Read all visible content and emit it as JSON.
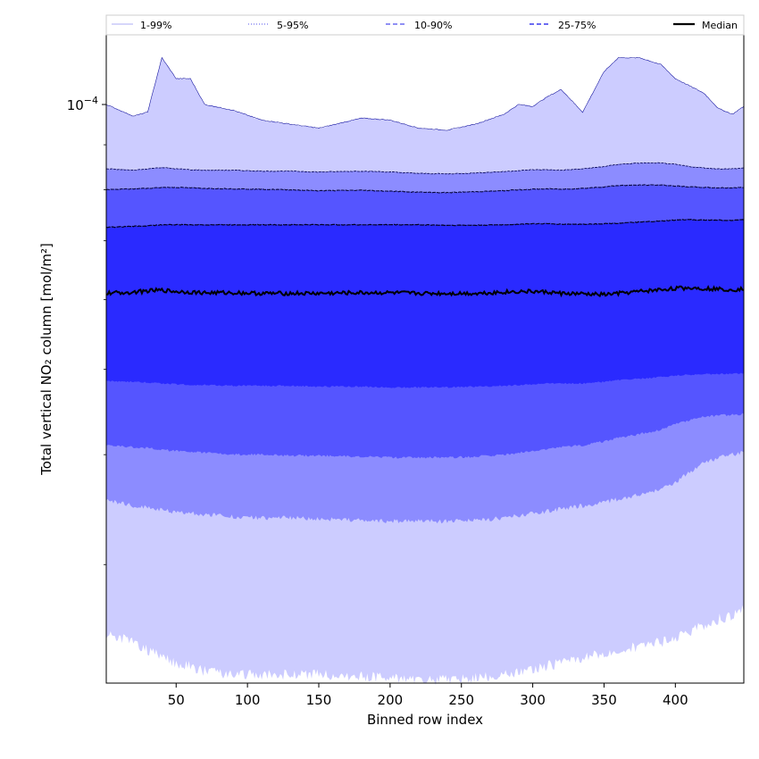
{
  "chart_data": {
    "type": "area",
    "title": "",
    "xlabel": "Binned row index",
    "ylabel": "Total vertical NO₂ column [mol/m²]",
    "yscale": "log",
    "xlim": [
      1,
      448
    ],
    "ylim": [
      2.2e-05,
      0.00012
    ],
    "x_ticks": [
      50,
      100,
      150,
      200,
      250,
      300,
      350,
      400
    ],
    "x_tick_labels": [
      "50",
      "100",
      "150",
      "200",
      "250",
      "300",
      "350",
      "400"
    ],
    "y_major_tick": 0.0001,
    "y_major_tick_label_base": "10",
    "y_major_tick_label_exp": "−4",
    "y_minor_ticks": [
      3e-05,
      4e-05,
      5e-05,
      6e-05,
      7e-05,
      8e-05,
      9e-05
    ],
    "legend": {
      "location": "top, above axes, single row",
      "entries": [
        {
          "label": "1-99%",
          "color": "#c8c8f8",
          "style": "solid"
        },
        {
          "label": "5-95%",
          "color": "#8c8cf2",
          "style": "dotted"
        },
        {
          "label": "10-90%",
          "color": "#6a6af0",
          "style": "dashed"
        },
        {
          "label": "25-75%",
          "color": "#3a3aee",
          "style": "dashed"
        },
        {
          "label": "Median",
          "color": "#000000",
          "style": "solid"
        }
      ]
    },
    "x": [
      1,
      20,
      30,
      40,
      50,
      60,
      70,
      90,
      110,
      130,
      150,
      180,
      200,
      220,
      240,
      260,
      280,
      290,
      300,
      310,
      320,
      335,
      350,
      360,
      375,
      390,
      400,
      410,
      420,
      430,
      440,
      448
    ],
    "bands": [
      {
        "name": "1-99%",
        "color": "#ccccff",
        "lower": [
          2.5e-05,
          2.45e-05,
          2.4e-05,
          2.35e-05,
          2.32e-05,
          2.3e-05,
          2.27e-05,
          2.25e-05,
          2.25e-05,
          2.25e-05,
          2.25e-05,
          2.24e-05,
          2.23e-05,
          2.22e-05,
          2.22e-05,
          2.23e-05,
          2.25e-05,
          2.27e-05,
          2.28e-05,
          2.3e-05,
          2.32e-05,
          2.35e-05,
          2.38e-05,
          2.4e-05,
          2.42e-05,
          2.45e-05,
          2.47e-05,
          2.52e-05,
          2.56e-05,
          2.6e-05,
          2.63e-05,
          2.67e-05
        ],
        "upper": [
          0.0001,
          9.7e-05,
          9.8e-05,
          0.000113,
          0.000107,
          0.000107,
          0.0001,
          9.85e-05,
          9.6e-05,
          9.5e-05,
          9.4e-05,
          9.65e-05,
          9.6e-05,
          9.4e-05,
          9.35e-05,
          9.5e-05,
          9.75e-05,
          0.0001,
          9.95e-05,
          0.000102,
          0.000104,
          9.8e-05,
          0.000109,
          0.000113,
          0.000113,
          0.000111,
          0.000107,
          0.000105,
          0.000103,
          9.9e-05,
          9.75e-05,
          9.95e-05
        ]
      },
      {
        "name": "5-95%",
        "color": "#8c8cff",
        "lower": [
          3.55e-05,
          3.5e-05,
          3.48e-05,
          3.46e-05,
          3.44e-05,
          3.43e-05,
          3.42e-05,
          3.4e-05,
          3.39e-05,
          3.39e-05,
          3.38e-05,
          3.37e-05,
          3.36e-05,
          3.36e-05,
          3.36e-05,
          3.37e-05,
          3.39e-05,
          3.41e-05,
          3.43e-05,
          3.45e-05,
          3.47e-05,
          3.5e-05,
          3.53e-05,
          3.56e-05,
          3.6e-05,
          3.65e-05,
          3.72e-05,
          3.82e-05,
          3.92e-05,
          3.97e-05,
          4e-05,
          4.03e-05
        ],
        "upper": [
          8.45e-05,
          8.42e-05,
          8.45e-05,
          8.48e-05,
          8.45e-05,
          8.43e-05,
          8.42e-05,
          8.42e-05,
          8.4e-05,
          8.4e-05,
          8.38e-05,
          8.4e-05,
          8.38e-05,
          8.35e-05,
          8.34e-05,
          8.36e-05,
          8.39e-05,
          8.41e-05,
          8.43e-05,
          8.43e-05,
          8.42e-05,
          8.45e-05,
          8.5e-05,
          8.55e-05,
          8.58e-05,
          8.58e-05,
          8.55e-05,
          8.5e-05,
          8.47e-05,
          8.45e-05,
          8.45e-05,
          8.47e-05
        ]
      },
      {
        "name": "10-90%",
        "color": "#5555ff",
        "lower": [
          4.1e-05,
          4.08e-05,
          4.07e-05,
          4.05e-05,
          4.04e-05,
          4.03e-05,
          4.02e-05,
          4e-05,
          4e-05,
          3.99e-05,
          3.99e-05,
          3.98e-05,
          3.97e-05,
          3.97e-05,
          3.97e-05,
          3.98e-05,
          4e-05,
          4.02e-05,
          4.04e-05,
          4.06e-05,
          4.08e-05,
          4.1e-05,
          4.14e-05,
          4.18e-05,
          4.22e-05,
          4.27e-05,
          4.33e-05,
          4.38e-05,
          4.42e-05,
          4.43e-05,
          4.44e-05,
          4.45e-05
        ],
        "upper": [
          8e-05,
          8.02e-05,
          8.03e-05,
          8.05e-05,
          8.05e-05,
          8.04e-05,
          8.03e-05,
          8.02e-05,
          8.01e-05,
          8e-05,
          7.98e-05,
          7.99e-05,
          7.97e-05,
          7.95e-05,
          7.94e-05,
          7.96e-05,
          7.98e-05,
          8e-05,
          8.01e-05,
          8.02e-05,
          8.01e-05,
          8.03e-05,
          8.06e-05,
          8.09e-05,
          8.1e-05,
          8.1e-05,
          8.08e-05,
          8.06e-05,
          8.05e-05,
          8.04e-05,
          8.04e-05,
          8.05e-05
        ]
      },
      {
        "name": "25-75%",
        "color": "#2a2aff",
        "lower": [
          4.85e-05,
          4.84e-05,
          4.83e-05,
          4.82e-05,
          4.81e-05,
          4.8e-05,
          4.8e-05,
          4.79e-05,
          4.79e-05,
          4.79e-05,
          4.78e-05,
          4.78e-05,
          4.77e-05,
          4.77e-05,
          4.77e-05,
          4.78e-05,
          4.79e-05,
          4.8e-05,
          4.81e-05,
          4.82e-05,
          4.82e-05,
          4.82e-05,
          4.84e-05,
          4.86e-05,
          4.88e-05,
          4.9e-05,
          4.92e-05,
          4.93e-05,
          4.94e-05,
          4.94e-05,
          4.94e-05,
          4.95e-05
        ],
        "upper": [
          7.25e-05,
          7.27e-05,
          7.28e-05,
          7.3e-05,
          7.3e-05,
          7.3e-05,
          7.3e-05,
          7.3e-05,
          7.3e-05,
          7.3e-05,
          7.3e-05,
          7.3e-05,
          7.3e-05,
          7.3e-05,
          7.29e-05,
          7.29e-05,
          7.3e-05,
          7.31e-05,
          7.32e-05,
          7.32e-05,
          7.31e-05,
          7.31e-05,
          7.32e-05,
          7.33e-05,
          7.35e-05,
          7.37e-05,
          7.39e-05,
          7.4e-05,
          7.39e-05,
          7.39e-05,
          7.38e-05,
          7.4e-05
        ]
      }
    ],
    "median": {
      "name": "Median",
      "color": "#000000",
      "values": [
        6.1e-05,
        6.12e-05,
        6.14e-05,
        6.15e-05,
        6.13e-05,
        6.12e-05,
        6.11e-05,
        6.11e-05,
        6.1e-05,
        6.1e-05,
        6.1e-05,
        6.11e-05,
        6.11e-05,
        6.1e-05,
        6.1e-05,
        6.1e-05,
        6.12e-05,
        6.13e-05,
        6.13e-05,
        6.12e-05,
        6.1e-05,
        6.09e-05,
        6.08e-05,
        6.1e-05,
        6.13e-05,
        6.16e-05,
        6.18e-05,
        6.19e-05,
        6.18e-05,
        6.17e-05,
        6.16e-05,
        6.17e-05
      ]
    }
  }
}
